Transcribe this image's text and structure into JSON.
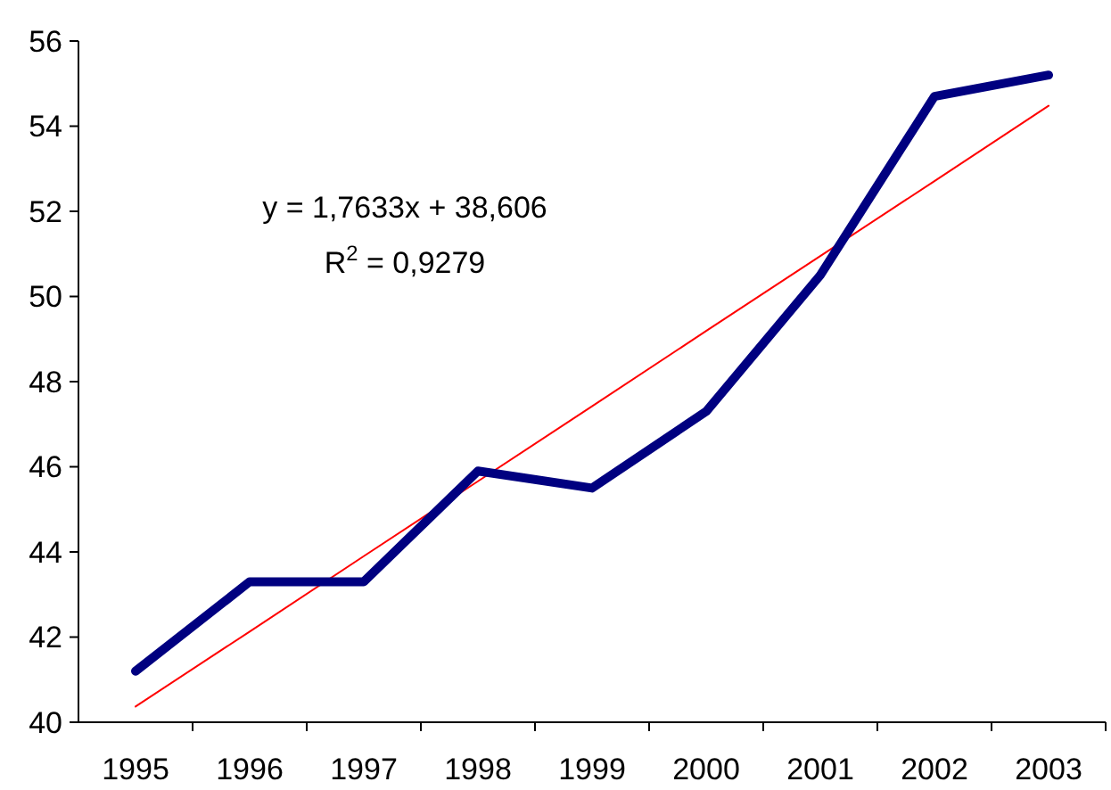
{
  "chart_data": {
    "type": "line",
    "categories": [
      "1995",
      "1996",
      "1997",
      "1998",
      "1999",
      "2000",
      "2001",
      "2002",
      "2003"
    ],
    "series": [
      {
        "color": "#000080",
        "values": [
          41.2,
          43.3,
          43.3,
          45.9,
          45.5,
          47.3,
          50.5,
          54.7,
          55.2
        ]
      },
      {
        "color": "#ff0000",
        "values": [
          40.37,
          42.13,
          43.9,
          45.66,
          47.42,
          49.19,
          50.95,
          52.71,
          54.48
        ]
      }
    ],
    "ylim": [
      40,
      56
    ],
    "yticks": [
      40,
      42,
      44,
      46,
      48,
      50,
      52,
      54,
      56
    ],
    "grid": false,
    "marker": "none",
    "line_style": "solid",
    "annotations": [
      "y = 1,7633x + 38,606",
      "R$^{2}$ = 0,9279"
    ]
  }
}
